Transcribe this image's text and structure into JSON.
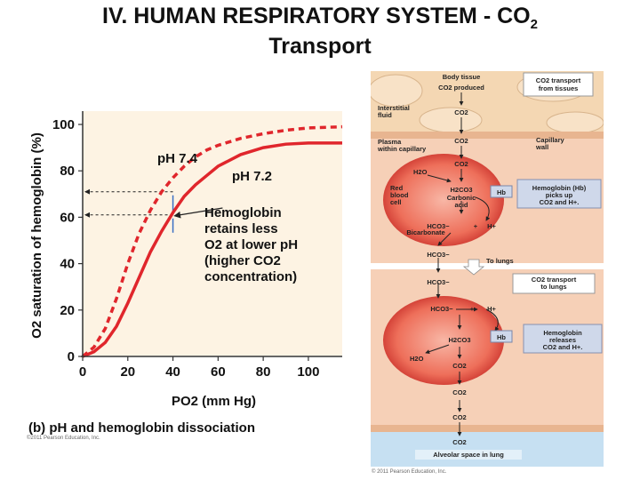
{
  "page": {
    "title_line1": "IV.  HUMAN RESPIRATORY SYSTEM - CO",
    "title_sub": "2",
    "title_line2": "Transport"
  },
  "chart_data": {
    "type": "line",
    "ylabel": "O2 saturation of hemoglobin (%)",
    "xlabel": "PO2 (mm Hg)",
    "xlim": [
      0,
      115
    ],
    "ylim": [
      0,
      100
    ],
    "x_ticks": [
      0,
      20,
      40,
      60,
      80,
      100
    ],
    "y_ticks": [
      0,
      20,
      40,
      60,
      80,
      100
    ],
    "series": [
      {
        "name": "pH 7.4",
        "style": "dashed",
        "color": "#e0262c",
        "x": [
          0,
          5,
          10,
          15,
          20,
          25,
          30,
          35,
          40,
          45,
          50,
          55,
          60,
          70,
          80,
          90,
          100,
          115
        ],
        "y": [
          0,
          4,
          12,
          25,
          40,
          53,
          63,
          71,
          77,
          82,
          86,
          89,
          91,
          94,
          96,
          97.5,
          98.5,
          99
        ]
      },
      {
        "name": "pH 7.2",
        "style": "solid",
        "color": "#e0262c",
        "x": [
          0,
          5,
          10,
          15,
          20,
          25,
          30,
          35,
          40,
          45,
          50,
          55,
          60,
          70,
          80,
          90,
          100,
          115
        ],
        "y": [
          0,
          2,
          6,
          13,
          23,
          34,
          45,
          54,
          62,
          69,
          74,
          78,
          82,
          87,
          90,
          91.5,
          92,
          92
        ]
      }
    ],
    "annotations": {
      "hb_lines": [
        "Hemoglobin",
        "retains less",
        "O2 at lower pH",
        "(higher CO2",
        "concentration)"
      ],
      "reference_levels": [
        71,
        61
      ],
      "reference_x": 40
    },
    "caption": "(b) pH and hemoglobin dissociation",
    "copyright": "©2011 Pearson Education, Inc."
  },
  "diagram": {
    "body_tissue": "Body tissue",
    "co2_produced": "CO2 produced",
    "interstitial_fluid": [
      "Interstitial",
      "fluid"
    ],
    "plasma": [
      "Plasma",
      "within capillary"
    ],
    "capillary_wall": [
      "Capillary",
      "wall"
    ],
    "red_blood_cell": [
      "Red",
      "blood",
      "cell"
    ],
    "carbonic_acid": [
      "Carbonic",
      "acid"
    ],
    "bicarbonate": "Bicarbonate",
    "to_lungs": "To lungs",
    "alveolar_space": "Alveolar space in lung",
    "labels": {
      "co2": "CO2",
      "h2o": "H2O",
      "h2co3": "H2CO3",
      "hb": "Hb",
      "hco3": "HCO3−",
      "h_plus": "H+",
      "plus": "+"
    },
    "callouts": {
      "transport_from_tissues": [
        "CO2 transport",
        "from tissues"
      ],
      "hb_picks_up": [
        "Hemoglobin (Hb)",
        "picks up",
        "CO2 and H+."
      ],
      "transport_to_lungs": [
        "CO2 transport",
        "to lungs"
      ],
      "hb_releases": [
        "Hemoglobin",
        "releases",
        "CO2 and H+."
      ]
    },
    "copyright": "© 2011 Pearson Education, Inc."
  }
}
